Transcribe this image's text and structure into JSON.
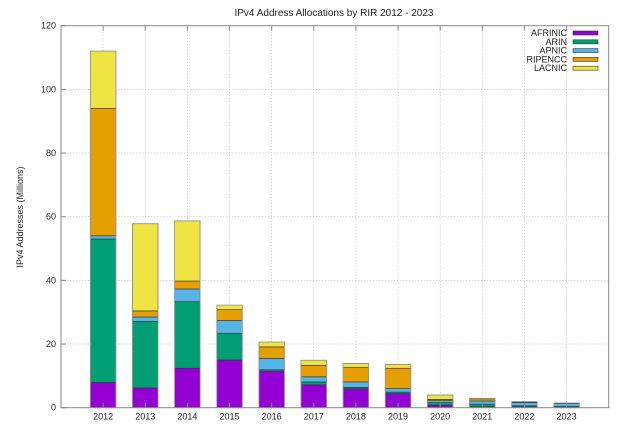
{
  "chart_data": {
    "type": "bar",
    "stacked": true,
    "title": "IPv4 Address Allocations by RIR 2012 - 2023",
    "xlabel": "",
    "ylabel": "IPv4 Addresses (Millions)",
    "ylim": [
      0,
      120
    ],
    "yticks": [
      0,
      20,
      40,
      60,
      80,
      100,
      120
    ],
    "grid": true,
    "legend_position": "top-right",
    "categories": [
      "2012",
      "2013",
      "2014",
      "2015",
      "2016",
      "2017",
      "2018",
      "2019",
      "2020",
      "2021",
      "2022",
      "2023"
    ],
    "series": [
      {
        "name": "AFRINIC",
        "color": "#9400d3",
        "values": [
          7.9,
          6.2,
          12.4,
          15.0,
          11.5,
          7.2,
          5.9,
          4.4,
          0.8,
          0.3,
          0.3,
          0.1
        ]
      },
      {
        "name": "ARIN",
        "color": "#009e73",
        "values": [
          45.1,
          20.9,
          20.9,
          8.4,
          0.4,
          0.9,
          0.5,
          0.5,
          0.8,
          0.8,
          0.3,
          0.3
        ]
      },
      {
        "name": "APNIC",
        "color": "#56b4e9",
        "values": [
          1.0,
          1.4,
          4.0,
          4.0,
          3.6,
          1.6,
          1.7,
          1.1,
          0.6,
          1.0,
          1.0,
          0.9
        ]
      },
      {
        "name": "RIPENCC",
        "color": "#e69f00",
        "values": [
          40.0,
          1.9,
          2.5,
          3.4,
          3.6,
          3.6,
          4.5,
          6.4,
          0.4,
          0.7,
          0.2,
          0.1
        ]
      },
      {
        "name": "LACNIC",
        "color": "#f0e442",
        "values": [
          18.0,
          27.4,
          18.9,
          1.4,
          1.5,
          1.6,
          1.3,
          1.2,
          1.4,
          0.1,
          0.1,
          0.05
        ]
      }
    ]
  }
}
